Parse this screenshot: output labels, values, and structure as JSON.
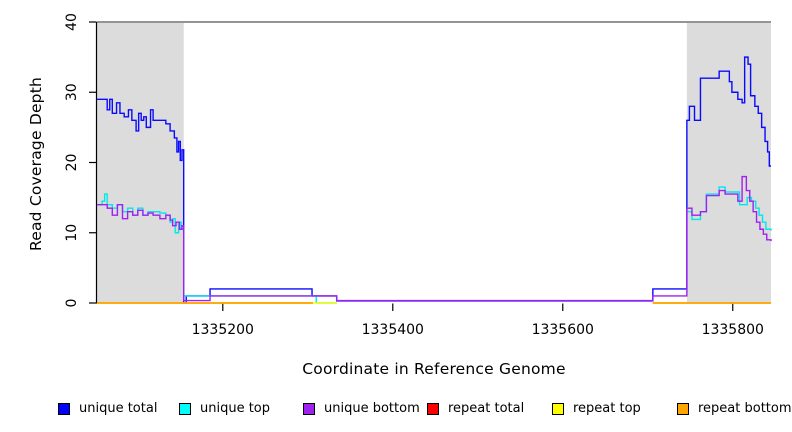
{
  "figure": {
    "xlabel": "Coordinate in Reference Genome",
    "ylabel": "Read Coverage Depth"
  },
  "chart_data": {
    "type": "line",
    "subtype": "step",
    "title": "",
    "xlabel": "Coordinate in Reference Genome",
    "ylabel": "Read Coverage Depth",
    "xlim": [
      1335052,
      1335845
    ],
    "ylim": [
      0,
      40
    ],
    "xticks": [
      1335200,
      1335400,
      1335600,
      1335800
    ],
    "yticks": [
      0,
      10,
      20,
      30,
      40
    ],
    "grid": false,
    "legend_position": "bottom",
    "shaded_regions": [
      {
        "x0": 1335052,
        "x1": 1335154,
        "color": "#dcdcdc"
      },
      {
        "x0": 1335746,
        "x1": 1335845,
        "color": "#dcdcdc"
      }
    ],
    "top_border_color": "#949494",
    "axis_color": "#000000",
    "series": [
      {
        "name": "unique total",
        "color": "#0a0aff",
        "runs": [
          [
            [
              1335052,
              29
            ],
            [
              1335064,
              27.5
            ],
            [
              1335067,
              29
            ],
            [
              1335070,
              27
            ],
            [
              1335075,
              28.5
            ],
            [
              1335079,
              27
            ],
            [
              1335084,
              26.5
            ],
            [
              1335089,
              27.5
            ],
            [
              1335093,
              26
            ],
            [
              1335098,
              24.5
            ],
            [
              1335101,
              27
            ],
            [
              1335104,
              26
            ],
            [
              1335107,
              26.5
            ],
            [
              1335110,
              25
            ],
            [
              1335115,
              27.5
            ],
            [
              1335118,
              26
            ],
            [
              1335133,
              25.5
            ],
            [
              1335138,
              24.5
            ],
            [
              1335143,
              23.5
            ],
            [
              1335146,
              21.5
            ],
            [
              1335148,
              23
            ],
            [
              1335150,
              20.3
            ],
            [
              1335152,
              21.8
            ],
            [
              1335154,
              0
            ],
            [
              1335157,
              1
            ],
            [
              1335185,
              2
            ],
            [
              1335305,
              1
            ],
            [
              1335334,
              0.3
            ],
            [
              1335706,
              2
            ],
            [
              1335746,
              26
            ],
            [
              1335749,
              28
            ],
            [
              1335755,
              26
            ],
            [
              1335762,
              32
            ],
            [
              1335784,
              33
            ],
            [
              1335796,
              31.5
            ],
            [
              1335799,
              30
            ],
            [
              1335806,
              29
            ],
            [
              1335811,
              28.5
            ],
            [
              1335814,
              35
            ],
            [
              1335818,
              34
            ],
            [
              1335821,
              29.5
            ],
            [
              1335826,
              28
            ],
            [
              1335830,
              27
            ],
            [
              1335834,
              25
            ],
            [
              1335838,
              23
            ],
            [
              1335841,
              21.5
            ],
            [
              1335843,
              19.5
            ],
            [
              1335845,
              19.5
            ]
          ]
        ]
      },
      {
        "name": "unique top",
        "color": "#00e9e9",
        "runs": [
          [
            [
              1335052,
              14
            ],
            [
              1335058,
              14.5
            ],
            [
              1335061,
              15.5
            ],
            [
              1335064,
              14
            ],
            [
              1335070,
              13.5
            ],
            [
              1335076,
              14
            ],
            [
              1335082,
              13
            ],
            [
              1335088,
              13.5
            ],
            [
              1335094,
              12.5
            ],
            [
              1335100,
              13.5
            ],
            [
              1335106,
              12.5
            ],
            [
              1335112,
              13
            ],
            [
              1335126,
              12.8
            ],
            [
              1335133,
              12.5
            ],
            [
              1335138,
              11.5
            ],
            [
              1335141,
              12
            ],
            [
              1335144,
              10
            ],
            [
              1335148,
              11.5
            ],
            [
              1335151,
              10.5
            ],
            [
              1335154,
              1
            ],
            [
              1335310,
              0
            ],
            [
              1335334,
              0
            ]
          ],
          [
            [
              1335746,
              13
            ],
            [
              1335752,
              11.9
            ],
            [
              1335762,
              13
            ],
            [
              1335769,
              15.5
            ],
            [
              1335784,
              16.5
            ],
            [
              1335791,
              15.8
            ],
            [
              1335808,
              14
            ],
            [
              1335817,
              15
            ],
            [
              1335822,
              14.5
            ],
            [
              1335827,
              13.5
            ],
            [
              1335831,
              12.5
            ],
            [
              1335835,
              11.5
            ],
            [
              1335839,
              10.5
            ],
            [
              1335845,
              10.3
            ]
          ]
        ]
      },
      {
        "name": "unique bottom",
        "color": "#a020f0",
        "runs": [
          [
            [
              1335052,
              14
            ],
            [
              1335064,
              13.5
            ],
            [
              1335070,
              12.5
            ],
            [
              1335076,
              14
            ],
            [
              1335082,
              12
            ],
            [
              1335088,
              13
            ],
            [
              1335094,
              12.5
            ],
            [
              1335100,
              13.2
            ],
            [
              1335106,
              12.5
            ],
            [
              1335112,
              12.8
            ],
            [
              1335118,
              12.5
            ],
            [
              1335126,
              12
            ],
            [
              1335133,
              12.5
            ],
            [
              1335138,
              11.8
            ],
            [
              1335141,
              11
            ],
            [
              1335145,
              11.5
            ],
            [
              1335149,
              10.5
            ],
            [
              1335152,
              11
            ],
            [
              1335154,
              0.35
            ],
            [
              1335185,
              1
            ],
            [
              1335334,
              0.35
            ],
            [
              1335706,
              1
            ],
            [
              1335746,
              13.5
            ],
            [
              1335752,
              12.5
            ],
            [
              1335762,
              13
            ],
            [
              1335769,
              15.3
            ],
            [
              1335784,
              16
            ],
            [
              1335791,
              15.5
            ],
            [
              1335806,
              14.5
            ],
            [
              1335811,
              18
            ],
            [
              1335816,
              16
            ],
            [
              1335820,
              14.5
            ],
            [
              1335824,
              13
            ],
            [
              1335828,
              11.5
            ],
            [
              1335832,
              10.5
            ],
            [
              1335836,
              9.8
            ],
            [
              1335840,
              9
            ],
            [
              1335845,
              8.8
            ]
          ]
        ]
      },
      {
        "name": "repeat total",
        "color": "#ff0000",
        "runs": [
          [
            [
              1335052,
              0
            ],
            [
              1335306,
              0
            ]
          ],
          [
            [
              1335706,
              0
            ],
            [
              1335845,
              0
            ]
          ]
        ]
      },
      {
        "name": "repeat top",
        "color": "#ffff00",
        "runs": [
          [
            [
              1335052,
              0
            ],
            [
              1335334,
              0
            ]
          ],
          [
            [
              1335706,
              0
            ],
            [
              1335845,
              0
            ]
          ]
        ]
      },
      {
        "name": "repeat bottom",
        "color": "#ffa500",
        "runs": [
          [
            [
              1335052,
              0
            ],
            [
              1335306,
              0
            ]
          ],
          [
            [
              1335706,
              0
            ],
            [
              1335845,
              0
            ]
          ]
        ]
      }
    ]
  },
  "legend": {
    "items": [
      {
        "label": "unique total",
        "color": "#0000ff"
      },
      {
        "label": "unique top",
        "color": "#00ffff"
      },
      {
        "label": "unique bottom",
        "color": "#a020f0"
      },
      {
        "label": "repeat total",
        "color": "#ff0000"
      },
      {
        "label": "repeat top",
        "color": "#ffff00"
      },
      {
        "label": "repeat bottom",
        "color": "#ffa500"
      }
    ]
  }
}
